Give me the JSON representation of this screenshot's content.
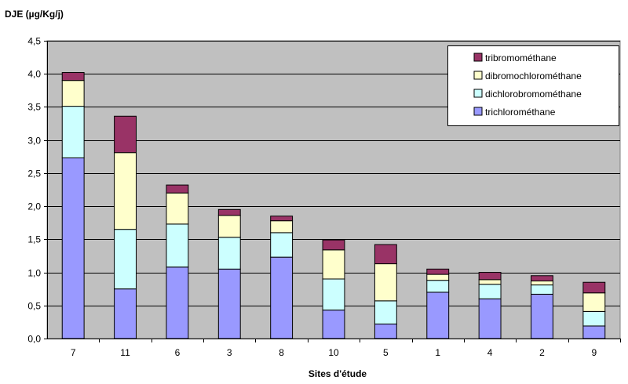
{
  "chart_data": {
    "type": "bar",
    "stacked": true,
    "ylabel": "DJE (µg/Kg/j)",
    "xlabel": "Sites d'étude",
    "ylim": [
      0,
      4.5
    ],
    "ytick_step": 0.5,
    "yticks": [
      "0,0",
      "0,5",
      "1,0",
      "1,5",
      "2,0",
      "2,5",
      "3,0",
      "3,5",
      "4,0",
      "4,5"
    ],
    "grid": true,
    "legend_position": "top-right",
    "plot_background": "#c0c0c0",
    "categories": [
      "7",
      "11",
      "6",
      "3",
      "8",
      "10",
      "5",
      "1",
      "4",
      "2",
      "9"
    ],
    "series": [
      {
        "name": "trichlorométhane",
        "color": "#9999ff",
        "values": [
          2.73,
          0.75,
          1.08,
          1.05,
          1.23,
          0.43,
          0.22,
          0.7,
          0.6,
          0.67,
          0.19
        ]
      },
      {
        "name": "dichlorobromométhane",
        "color": "#ccffff",
        "values": [
          0.78,
          0.9,
          0.65,
          0.48,
          0.37,
          0.47,
          0.35,
          0.18,
          0.22,
          0.14,
          0.22
        ]
      },
      {
        "name": "dibromochlorométhane",
        "color": "#ffffcc",
        "values": [
          0.39,
          1.16,
          0.47,
          0.33,
          0.18,
          0.44,
          0.56,
          0.09,
          0.07,
          0.06,
          0.28
        ]
      },
      {
        "name": "tribromométhane",
        "color": "#993366",
        "values": [
          0.12,
          0.55,
          0.12,
          0.09,
          0.07,
          0.15,
          0.29,
          0.08,
          0.11,
          0.08,
          0.16
        ]
      }
    ]
  }
}
